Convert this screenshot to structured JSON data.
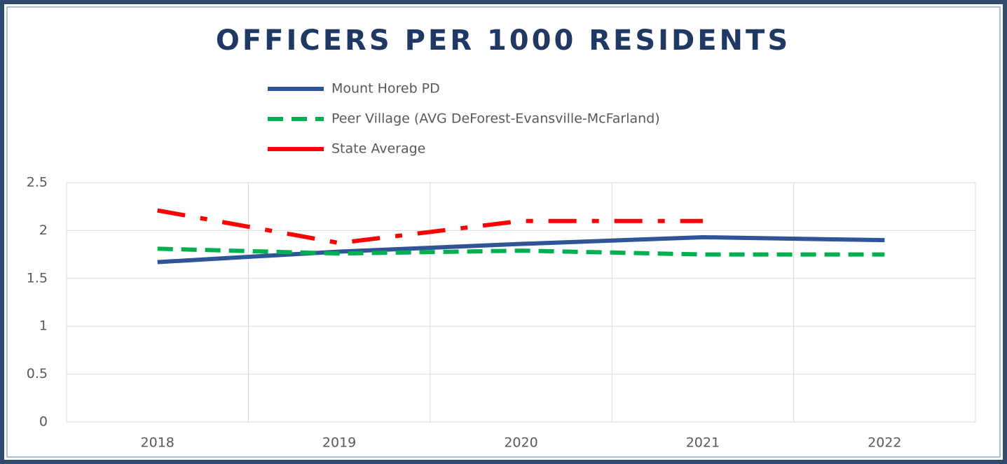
{
  "chart_data": {
    "type": "line",
    "title": "OFFICERS PER 1000 RESIDENTS",
    "categories": [
      "2018",
      "2019",
      "2020",
      "2021",
      "2022"
    ],
    "series": [
      {
        "name": "Mount Horeb PD",
        "color": "#2f5597",
        "style": "solid",
        "values": [
          1.67,
          1.78,
          1.86,
          1.93,
          1.9
        ]
      },
      {
        "name": "Peer Village (AVG DeForest-Evansville-McFarland)",
        "color": "#00b050",
        "style": "dashed",
        "values": [
          1.81,
          1.76,
          1.79,
          1.75,
          1.75
        ]
      },
      {
        "name": "State Average",
        "color": "#ff0000",
        "style": "dashdot",
        "values": [
          2.21,
          1.87,
          2.1,
          2.1,
          null
        ]
      }
    ],
    "ylim": [
      0,
      2.5
    ],
    "yticks": [
      0,
      0.5,
      1,
      1.5,
      2,
      2.5
    ],
    "grid": true,
    "legend": "top"
  }
}
